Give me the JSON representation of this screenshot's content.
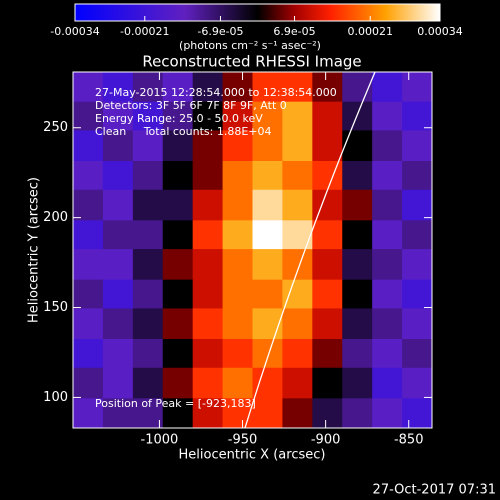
{
  "chart_data": {
    "type": "heatmap",
    "title": "Reconstructed RHESSI Image",
    "x_label": "Heliocentric X (arcsec)",
    "y_label": "Heliocentric Y (arcsec)",
    "annotations": [
      "27-May-2015 12:28:54.000 to 12:38:54.000",
      "Detectors: 3F 5F 6F 7F 8F 9F, Att 0",
      "Energy Range: 25.0 - 50.0 keV",
      "Clean     Total counts: 1.88E+04"
    ],
    "peak_label": "Position of Peak = [-923,183]",
    "footer": "27-Oct-2017 07:31",
    "colorbar": {
      "label": "(photons cm⁻² s⁻¹ asec⁻²)",
      "lim": [
        -0.00034,
        0.00034
      ],
      "ticks": [
        -0.00034,
        -0.00021,
        {
          "value": -6.9e-05,
          "label": "-6.9e-05"
        },
        {
          "value": 6.9e-05,
          "label": "6.9e-05"
        },
        0.00021,
        0.00034
      ]
    },
    "xlim": [
      -1052,
      -836
    ],
    "ylim": [
      83,
      281
    ],
    "xticks": [
      -1000,
      -950,
      -900,
      -850
    ],
    "yticks": [
      100,
      150,
      200,
      250
    ],
    "x": [
      -1043,
      -1025,
      -1007,
      -989,
      -971,
      -953,
      -935,
      -917,
      -899,
      -881,
      -863,
      -845
    ],
    "y": [
      273,
      256,
      240,
      223,
      207,
      190,
      174,
      157,
      141,
      124,
      108,
      91
    ],
    "z": [
      [
        -0.00015,
        -0.0002,
        -0.0001,
        -0.00015,
        -5e-05,
        5e-05,
        0.00015,
        0.00015,
        5e-05,
        -0.0001,
        -0.0002,
        -0.00015
      ],
      [
        -0.0001,
        -0.00015,
        -0.0002,
        -0.0001,
        0,
        0.0001,
        0.0002,
        0.00025,
        0.0001,
        -5e-05,
        -0.00015,
        -0.0002
      ],
      [
        -0.0002,
        -0.0001,
        -0.00015,
        -5e-05,
        5e-05,
        0.00015,
        0.0002,
        0.00025,
        0.0001,
        0,
        -0.0001,
        -0.00015
      ],
      [
        -0.00015,
        -0.0002,
        -0.0001,
        0,
        5e-05,
        0.0002,
        0.00025,
        0.0002,
        0.00015,
        -5e-05,
        -0.00015,
        -0.0001
      ],
      [
        -0.0001,
        -0.00015,
        -5e-05,
        -5e-05,
        0.0001,
        0.0002,
        0.0003,
        0.00025,
        0.0001,
        5e-05,
        -0.0001,
        -0.0002
      ],
      [
        -0.0002,
        -0.0001,
        -0.0001,
        0,
        0.00015,
        0.00025,
        0.00034,
        0.0003,
        0.00015,
        0,
        -0.00015,
        -0.0001
      ],
      [
        -0.00015,
        -0.00015,
        -5e-05,
        5e-05,
        0.0001,
        0.0002,
        0.00025,
        0.0002,
        0.0001,
        -5e-05,
        -0.0001,
        -0.00015
      ],
      [
        -0.0001,
        -0.0002,
        -0.0001,
        0,
        0.0001,
        0.0002,
        0.0002,
        0.00025,
        0.00015,
        0,
        -0.00015,
        -0.0002
      ],
      [
        -0.00015,
        -0.0001,
        -5e-05,
        5e-05,
        0.00015,
        0.0002,
        0.00025,
        0.0002,
        0.0001,
        -5e-05,
        -0.0001,
        -0.00015
      ],
      [
        -0.0002,
        -0.00015,
        -0.0001,
        0,
        0.0001,
        0.00015,
        0.0002,
        0.00015,
        5e-05,
        -0.0001,
        -0.00015,
        -0.0001
      ],
      [
        -0.0001,
        -0.00015,
        -5e-05,
        5e-05,
        0.00015,
        0.0002,
        0.00015,
        0.0001,
        0,
        -5e-05,
        -0.0002,
        -0.00015
      ],
      [
        -0.00015,
        -0.0001,
        -0.0001,
        0,
        0.0001,
        0.00015,
        0.00015,
        5e-05,
        -5e-05,
        -0.0001,
        -0.00015,
        -0.0002
      ]
    ]
  }
}
